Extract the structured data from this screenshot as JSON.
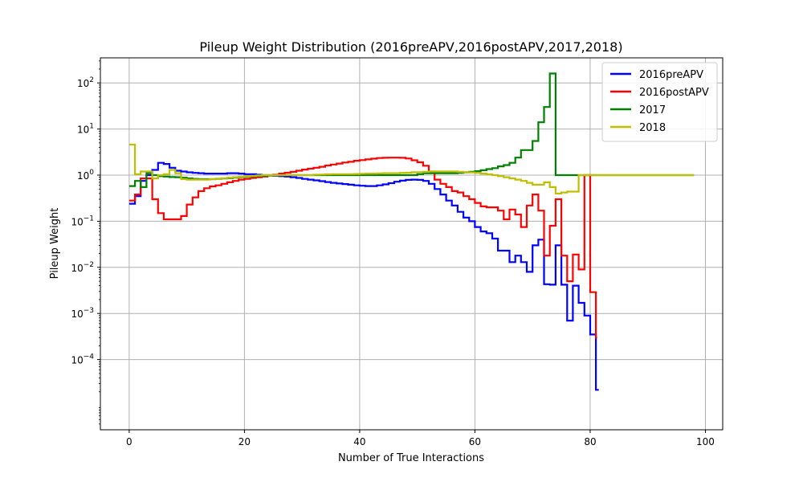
{
  "chart_data": {
    "type": "line",
    "title": "Pileup Weight Distribution (2016preAPV,2016postAPV,2017,2018)",
    "xlabel": "Number of True Interactions",
    "ylabel": "Pileup Weight",
    "xlim": [
      -5,
      103
    ],
    "ylim": [
      3e-06,
      350
    ],
    "yscale": "log",
    "grid": true,
    "legend_position": "top-right",
    "x_ticks": [
      0,
      20,
      40,
      60,
      80,
      100
    ],
    "x_tick_labels": [
      "0",
      "20",
      "40",
      "60",
      "80",
      "100"
    ],
    "y_ticks": [
      {
        "value": 0.0001,
        "base": "10",
        "exp": "−4"
      },
      {
        "value": 0.001,
        "base": "10",
        "exp": "−3"
      },
      {
        "value": 0.01,
        "base": "10",
        "exp": "−2"
      },
      {
        "value": 0.1,
        "base": "10",
        "exp": "−1"
      },
      {
        "value": 1,
        "base": "10",
        "exp": "0"
      },
      {
        "value": 10,
        "base": "10",
        "exp": "1"
      },
      {
        "value": 100,
        "base": "10",
        "exp": "2"
      }
    ],
    "series": [
      {
        "name": "2016preAPV",
        "color": "#0000ff",
        "x_start": 0,
        "step": 1,
        "values": [
          0.24,
          0.35,
          0.75,
          1.0,
          1.3,
          1.85,
          1.75,
          1.45,
          1.25,
          1.2,
          1.15,
          1.12,
          1.1,
          1.08,
          1.08,
          1.08,
          1.08,
          1.1,
          1.1,
          1.08,
          1.05,
          1.05,
          1.02,
          1.0,
          1.0,
          0.97,
          0.95,
          0.93,
          0.9,
          0.87,
          0.83,
          0.8,
          0.77,
          0.74,
          0.71,
          0.68,
          0.66,
          0.64,
          0.62,
          0.6,
          0.59,
          0.58,
          0.58,
          0.6,
          0.63,
          0.67,
          0.72,
          0.76,
          0.79,
          0.8,
          0.79,
          0.75,
          0.65,
          0.5,
          0.38,
          0.28,
          0.22,
          0.16,
          0.12,
          0.1,
          0.075,
          0.06,
          0.055,
          0.042,
          0.023,
          0.023,
          0.013,
          0.018,
          0.013,
          0.008,
          0.03,
          0.04,
          0.0043,
          0.0042,
          0.03,
          0.0042,
          0.0007,
          0.004,
          0.0017,
          0.0009,
          0.00035,
          2.2e-05
        ],
        "x_end": 81.5
      },
      {
        "name": "2016postAPV",
        "color": "#ff0000",
        "x_start": 0,
        "step": 1,
        "values": [
          0.28,
          0.38,
          0.85,
          0.85,
          0.3,
          0.15,
          0.11,
          0.11,
          0.11,
          0.13,
          0.23,
          0.33,
          0.45,
          0.52,
          0.57,
          0.6,
          0.65,
          0.7,
          0.75,
          0.8,
          0.83,
          0.87,
          0.9,
          0.93,
          0.98,
          1.02,
          1.08,
          1.13,
          1.18,
          1.25,
          1.32,
          1.38,
          1.45,
          1.52,
          1.62,
          1.7,
          1.78,
          1.88,
          1.95,
          2.05,
          2.12,
          2.2,
          2.28,
          2.35,
          2.38,
          2.4,
          2.4,
          2.38,
          2.3,
          2.1,
          1.9,
          1.6,
          1.2,
          0.8,
          0.65,
          0.55,
          0.45,
          0.42,
          0.35,
          0.3,
          0.25,
          0.21,
          0.2,
          0.2,
          0.17,
          0.11,
          0.18,
          0.14,
          0.075,
          0.22,
          0.38,
          0.17,
          0.018,
          0.08,
          0.3,
          0.018,
          0.005,
          0.019,
          0.009,
          1.0,
          0.0029,
          0.0003
        ],
        "x_end": 81.2
      },
      {
        "name": "2017",
        "color": "#008000",
        "x_start": 0,
        "step": 1,
        "values": [
          0.58,
          0.75,
          0.55,
          1.1,
          1.0,
          0.95,
          0.93,
          0.91,
          0.9,
          0.88,
          0.85,
          0.83,
          0.82,
          0.82,
          0.82,
          0.83,
          0.85,
          0.86,
          0.88,
          0.9,
          0.92,
          0.94,
          0.95,
          0.97,
          0.98,
          0.99,
          1.0,
          1.0,
          1.0,
          1.0,
          1.0,
          1.0,
          1.0,
          1.0,
          1.0,
          1.0,
          1.0,
          1.0,
          1.0,
          1.0,
          1.0,
          1.0,
          1.0,
          1.0,
          1.0,
          1.0,
          1.0,
          1.0,
          1.0,
          1.0,
          1.05,
          1.1,
          1.1,
          1.1,
          1.1,
          1.1,
          1.1,
          1.12,
          1.15,
          1.18,
          1.22,
          1.28,
          1.35,
          1.42,
          1.55,
          1.65,
          1.85,
          2.4,
          3.5,
          3.5,
          5.5,
          14.0,
          30.0,
          160.0,
          1.0,
          1.0,
          1.0,
          1.0,
          1.0,
          1.0
        ],
        "x_end": 98
      },
      {
        "name": "2018",
        "color": "#bfbf00",
        "x_start": 0,
        "step": 1,
        "values": [
          4.6,
          1.05,
          1.2,
          1.2,
          0.85,
          1.0,
          1.05,
          1.3,
          1.1,
          0.82,
          0.8,
          0.8,
          0.8,
          0.8,
          0.82,
          0.84,
          0.86,
          0.88,
          0.9,
          0.92,
          0.94,
          0.96,
          0.98,
          1.0,
          1.0,
          1.0,
          1.0,
          1.0,
          1.0,
          1.0,
          1.0,
          1.0,
          1.02,
          1.03,
          1.04,
          1.05,
          1.05,
          1.05,
          1.05,
          1.06,
          1.07,
          1.08,
          1.08,
          1.09,
          1.1,
          1.1,
          1.1,
          1.12,
          1.13,
          1.15,
          1.16,
          1.18,
          1.2,
          1.2,
          1.2,
          1.2,
          1.2,
          1.18,
          1.16,
          1.14,
          1.12,
          1.08,
          1.04,
          1.0,
          0.95,
          0.9,
          0.85,
          0.8,
          0.75,
          0.68,
          0.62,
          0.62,
          0.7,
          0.55,
          0.4,
          0.42,
          0.44,
          0.44,
          1.0,
          1.0
        ],
        "x_end": 98
      }
    ]
  }
}
